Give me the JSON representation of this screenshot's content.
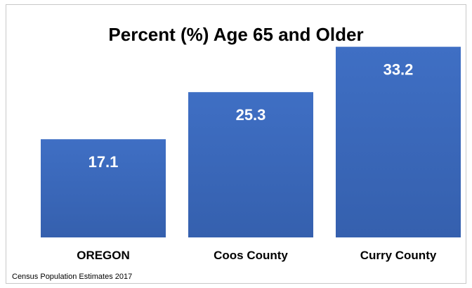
{
  "chart_data": {
    "type": "bar",
    "title": "Percent (%) Age 65 and Older",
    "categories": [
      "OREGON",
      "Coos County",
      "Curry County"
    ],
    "values": [
      17.1,
      25.3,
      33.2
    ],
    "value_labels": [
      "17.1",
      "25.3",
      "33.2"
    ],
    "xlabel": "",
    "ylabel": "",
    "ylim": [
      0,
      40
    ],
    "grid": false,
    "legend": "none",
    "bar_color": "#3F6FC4",
    "bar_color_dark": "#3560AE",
    "source": "Census Population Estimates 2017"
  }
}
